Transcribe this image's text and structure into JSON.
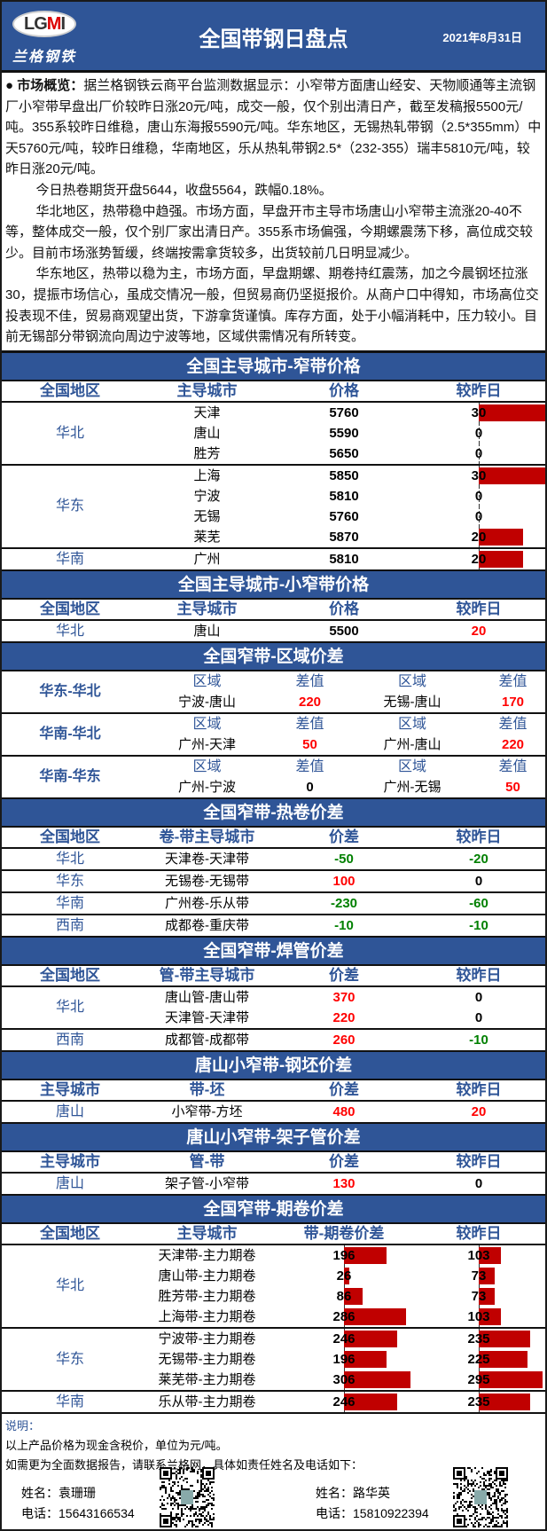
{
  "header": {
    "logo_text": "LGMI",
    "logo_cn": "兰格钢铁",
    "title": "全国带钢日盘点",
    "date": "2021年8月31日"
  },
  "overview": {
    "lead": "● 市场概览：",
    "paragraphs": [
      "据兰格钢铁云商平台监测数据显示：小窄带方面唐山经安、天物顺通等主流钢厂小窄带早盘出厂价较昨日涨20元/吨，成交一般，仅个别出清日产，截至发稿报5500元/吨。355系较昨日维稳，唐山东海报5590元/吨。华东地区，无锡热轧带钢（2.5*355mm）中天5760元/吨，较昨日维稳，华南地区，乐从热轧带钢2.5*（232-355）瑞丰5810元/吨，较昨日涨20元/吨。",
      "今日热卷期货开盘5644，收盘5564，跌幅0.18%。",
      "华北地区，热带稳中趋强。市场方面，早盘开市主导市场唐山小窄带主流涨20-40不等，整体成交一般，仅个别厂家出清日产。355系市场偏强，今期螺震荡下移，高位成交较少。目前市场涨势暂缓，终端按需拿货较多，出货较前几日明显减少。",
      "华东地区，热带以稳为主，市场方面，早盘期螺、期卷持红震荡，加之今晨钢坯拉涨30，提振市场信心，虽成交情况一般，但贸易商仍坚挺报价。从商户口中得知，市场高位交投表现不佳，贸易商观望出货，下游拿货谨慎。库存方面，处于小幅消耗中，压力较小。目前无锡部分带钢流向周边宁波等地，区域供需情况有所转变。"
    ]
  },
  "colors": {
    "header_blue": "#2F5597",
    "up": "#FF0000",
    "down": "#008000",
    "bar": "#C00000"
  },
  "sections": [
    {
      "id": "narrow-price",
      "title": "全国主导城市-窄带价格",
      "headers": [
        "全国地区",
        "主导城市",
        "价格",
        "较昨日"
      ],
      "bars": [
        3
      ],
      "groups": [
        {
          "region": "华北",
          "rows": [
            [
              "天津",
              "5760",
              "30"
            ],
            [
              "唐山",
              "5590",
              "0"
            ],
            [
              "胜芳",
              "5650",
              "0"
            ]
          ]
        },
        {
          "region": "华东",
          "rows": [
            [
              "上海",
              "5850",
              "30"
            ],
            [
              "宁波",
              "5810",
              "0"
            ],
            [
              "无锡",
              "5760",
              "0"
            ],
            [
              "莱芜",
              "5870",
              "20"
            ]
          ]
        },
        {
          "region": "华南",
          "rows": [
            [
              "广州",
              "5810",
              "20"
            ]
          ]
        }
      ]
    },
    {
      "id": "small-narrow-price",
      "title": "全国主导城市-小窄带价格",
      "headers": [
        "全国地区",
        "主导城市",
        "价格",
        "较昨日"
      ],
      "signed": [
        3
      ],
      "groups": [
        {
          "region": "华北",
          "rows": [
            [
              "唐山",
              "5500",
              "20"
            ]
          ]
        }
      ]
    },
    {
      "id": "region-diff",
      "title": "全国窄带-区域价差",
      "type": "region",
      "groups": [
        {
          "region": "华东-华北",
          "sub": [
            "区域",
            "差值",
            "区域",
            "差值"
          ],
          "vals": [
            "宁波-唐山",
            "220",
            "无锡-唐山",
            "170"
          ]
        },
        {
          "region": "华南-华北",
          "sub": [
            "区域",
            "差值",
            "区域",
            "差值"
          ],
          "vals": [
            "广州-天津",
            "50",
            "广州-唐山",
            "220"
          ]
        },
        {
          "region": "华南-华东",
          "sub": [
            "区域",
            "差值",
            "区域",
            "差值"
          ],
          "vals": [
            "广州-宁波",
            "0",
            "广州-无锡",
            "50"
          ]
        }
      ]
    },
    {
      "id": "hot-coil-diff",
      "title": "全国窄带-热卷价差",
      "headers": [
        "全国地区",
        "卷-带主导城市",
        "价差",
        "较昨日"
      ],
      "signed": [
        2,
        3
      ],
      "groups": [
        {
          "region": "华北",
          "rows": [
            [
              "天津卷-天津带",
              "-50",
              "-20"
            ]
          ]
        },
        {
          "region": "华东",
          "rows": [
            [
              "无锡卷-无锡带",
              "100",
              "0"
            ]
          ]
        },
        {
          "region": "华南",
          "rows": [
            [
              "广州卷-乐从带",
              "-230",
              "-60"
            ]
          ]
        },
        {
          "region": "西南",
          "rows": [
            [
              "成都卷-重庆带",
              "-10",
              "-10"
            ]
          ]
        }
      ]
    },
    {
      "id": "welded-pipe-diff",
      "title": "全国窄带-焊管价差",
      "headers": [
        "全国地区",
        "管-带主导城市",
        "价差",
        "较昨日"
      ],
      "signed": [
        2,
        3
      ],
      "groups": [
        {
          "region": "华北",
          "rows": [
            [
              "唐山管-唐山带",
              "370",
              "0"
            ],
            [
              "天津管-天津带",
              "220",
              "0"
            ]
          ]
        },
        {
          "region": "西南",
          "rows": [
            [
              "成都管-成都带",
              "260",
              "-10"
            ]
          ]
        }
      ]
    },
    {
      "id": "billet-diff",
      "title": "唐山小窄带-钢坯价差",
      "headers": [
        "主导城市",
        "带-坯",
        "价差",
        "较昨日"
      ],
      "signed": [
        2,
        3
      ],
      "groups": [
        {
          "region": "唐山",
          "rows": [
            [
              "小窄带-方坯",
              "480",
              "20"
            ]
          ]
        }
      ]
    },
    {
      "id": "rack-pipe-diff",
      "title": "唐山小窄带-架子管价差",
      "headers": [
        "主导城市",
        "管-带",
        "价差",
        "较昨日"
      ],
      "signed": [
        2,
        3
      ],
      "groups": [
        {
          "region": "唐山",
          "rows": [
            [
              "架子管-小窄带",
              "130",
              "0"
            ]
          ]
        }
      ]
    },
    {
      "id": "futures-diff",
      "title": "全国窄带-期卷价差",
      "headers": [
        "全国地区",
        "主导城市",
        "带-期卷价差",
        "较昨日"
      ],
      "bars": [
        2,
        3
      ],
      "groups": [
        {
          "region": "华北",
          "rows": [
            [
              "天津带-主力期卷",
              "196",
              "103"
            ],
            [
              "唐山带-主力期卷",
              "26",
              "73"
            ],
            [
              "胜芳带-主力期卷",
              "86",
              "73"
            ],
            [
              "上海带-主力期卷",
              "286",
              "103"
            ]
          ]
        },
        {
          "region": "华东",
          "rows": [
            [
              "宁波带-主力期卷",
              "246",
              "235"
            ],
            [
              "无锡带-主力期卷",
              "196",
              "225"
            ],
            [
              "莱芜带-主力期卷",
              "306",
              "295"
            ]
          ]
        },
        {
          "region": "华南",
          "rows": [
            [
              "乐从带-主力期卷",
              "246",
              "235"
            ]
          ]
        }
      ]
    }
  ],
  "footer": {
    "note_title": "说明：",
    "note": "以上产品价格为现金含税价，单位为元/吨。",
    "contact_intro": "如需更为全面数据报告，请联系兰格网，具体如责任姓名及电话如下：",
    "contacts": [
      {
        "name": "姓名：袁珊珊",
        "phone": "电话：15643166534"
      },
      {
        "name": "姓名：路华英",
        "phone": "电话：15810922394"
      }
    ]
  }
}
